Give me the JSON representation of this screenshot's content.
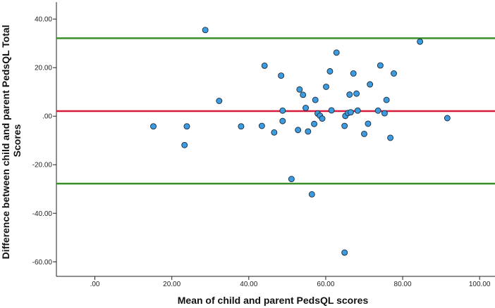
{
  "chart_data": {
    "type": "scatter",
    "title": "",
    "xlabel": "Mean of child and parent PedsQL scores",
    "ylabel_lines": [
      "Difference between child and parent PedsQL Total",
      "Scores"
    ],
    "xlim": [
      -10,
      104
    ],
    "ylim": [
      -66,
      47
    ],
    "x_ticks": [
      0,
      20,
      40,
      60,
      80,
      100
    ],
    "x_tick_labels": [
      ".00",
      "20.00",
      "40.00",
      "60.00",
      "80.00",
      "100.00"
    ],
    "y_ticks": [
      40,
      20,
      0,
      -20,
      -40,
      -60
    ],
    "y_tick_labels": [
      "40.00",
      "20.00",
      ".00",
      "-20.00",
      "-40.00",
      "-60.00"
    ],
    "grid": false,
    "marker_color": "#3d9be0",
    "marker_edge_color": "#1a2a3a",
    "reference_lines": [
      {
        "role": "upper-limit",
        "y": 32.1,
        "color": "#3a8f2a"
      },
      {
        "role": "mean-difference",
        "y": 2.1,
        "color": "#d81b3c"
      },
      {
        "role": "lower-limit",
        "y": -27.8,
        "color": "#3a8f2a"
      }
    ],
    "points": [
      {
        "x": 15.2,
        "y": -4.2
      },
      {
        "x": 23.3,
        "y": -11.9
      },
      {
        "x": 23.9,
        "y": -4.2
      },
      {
        "x": 28.7,
        "y": 35.5
      },
      {
        "x": 32.3,
        "y": 6.3
      },
      {
        "x": 38.0,
        "y": -4.2
      },
      {
        "x": 43.4,
        "y": -4.0
      },
      {
        "x": 44.1,
        "y": 20.8
      },
      {
        "x": 46.6,
        "y": -6.7
      },
      {
        "x": 48.4,
        "y": 16.7
      },
      {
        "x": 48.8,
        "y": 2.3
      },
      {
        "x": 48.8,
        "y": -2.0
      },
      {
        "x": 51.1,
        "y": -25.9
      },
      {
        "x": 52.8,
        "y": -5.7
      },
      {
        "x": 53.2,
        "y": 11.0
      },
      {
        "x": 54.1,
        "y": 8.8
      },
      {
        "x": 54.8,
        "y": 3.4
      },
      {
        "x": 55.4,
        "y": -6.3
      },
      {
        "x": 56.4,
        "y": -32.2
      },
      {
        "x": 57.0,
        "y": -3.2
      },
      {
        "x": 57.3,
        "y": 6.7
      },
      {
        "x": 57.9,
        "y": 1.1
      },
      {
        "x": 58.5,
        "y": 0.2
      },
      {
        "x": 59.1,
        "y": -1.0
      },
      {
        "x": 60.1,
        "y": 12.1
      },
      {
        "x": 61.1,
        "y": 18.5
      },
      {
        "x": 61.5,
        "y": 2.4
      },
      {
        "x": 62.8,
        "y": 26.2
      },
      {
        "x": 64.9,
        "y": -56.2
      },
      {
        "x": 64.9,
        "y": -4.0
      },
      {
        "x": 65.1,
        "y": 0.1
      },
      {
        "x": 65.8,
        "y": 1.3
      },
      {
        "x": 66.2,
        "y": 8.9
      },
      {
        "x": 66.5,
        "y": 1.6
      },
      {
        "x": 67.2,
        "y": 17.6
      },
      {
        "x": 68.0,
        "y": 9.3
      },
      {
        "x": 68.3,
        "y": 2.3
      },
      {
        "x": 70.0,
        "y": -7.3
      },
      {
        "x": 71.0,
        "y": -3.1
      },
      {
        "x": 71.5,
        "y": 13.1
      },
      {
        "x": 73.6,
        "y": 2.3
      },
      {
        "x": 74.2,
        "y": 20.9
      },
      {
        "x": 75.3,
        "y": 1.2
      },
      {
        "x": 75.8,
        "y": 6.7
      },
      {
        "x": 76.8,
        "y": -8.9
      },
      {
        "x": 77.7,
        "y": 17.6
      },
      {
        "x": 84.5,
        "y": 30.7
      },
      {
        "x": 91.6,
        "y": -0.8
      }
    ]
  }
}
